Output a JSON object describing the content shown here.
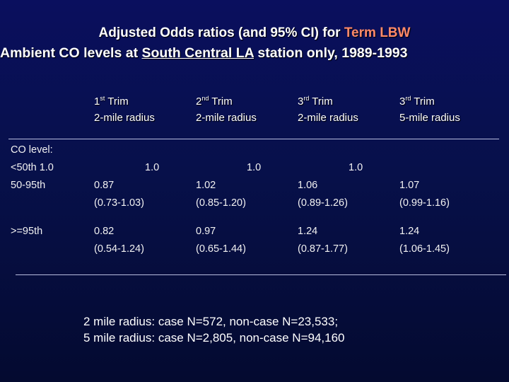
{
  "title": {
    "line1_a": "Adjusted Odds ratios (and 95% CI) for ",
    "line1_b": "Term LBW",
    "line2_a": "Ambient CO levels at ",
    "line2_b": "South Central LA",
    "line2_c": " station only, 1989-1993"
  },
  "columns": [
    {
      "trim_num": "1",
      "trim_sup": "st",
      "trim_word": " Trim",
      "radius": "2-mile radius"
    },
    {
      "trim_num": "2",
      "trim_sup": "nd",
      "trim_word": " Trim",
      "radius": "2-mile radius"
    },
    {
      "trim_num": "3",
      "trim_sup": "rd",
      "trim_word": " Trim",
      "radius": "2-mile radius"
    },
    {
      "trim_num": "3",
      "trim_sup": "rd",
      "trim_word": " Trim",
      "radius": "5-mile radius"
    }
  ],
  "rows": {
    "co_label": "CO level:",
    "ref": {
      "label": "<50th 1.0",
      "values": [
        "1.0",
        "1.0",
        "1.0"
      ]
    },
    "mid": {
      "label": "50-95th",
      "or": [
        "0.87",
        "1.02",
        "1.06",
        "1.07"
      ],
      "ci": [
        "(0.73-1.03)",
        "(0.85-1.20)",
        "(0.89-1.26)",
        "(0.99-1.16)"
      ]
    },
    "high": {
      "label": ">=95th",
      "or": [
        "0.82",
        "0.97",
        "1.24",
        "1.24"
      ],
      "ci": [
        "(0.54-1.24)",
        "(0.65-1.44)",
        "(0.87-1.77)",
        "(1.06-1.45)"
      ]
    }
  },
  "footnote": {
    "line1": "2 mile radius: case N=572,   non-case N=23,533;",
    "line2": "5 mile radius: case N=2,805, non-case N=94,160"
  }
}
